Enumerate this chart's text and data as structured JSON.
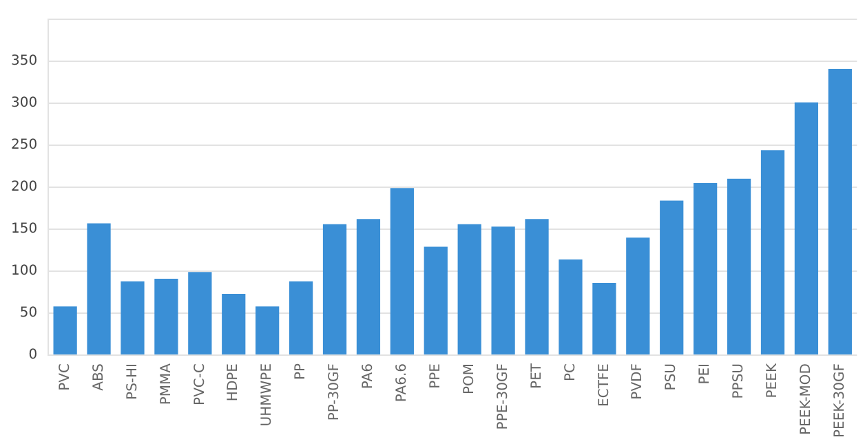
{
  "chart_data": {
    "type": "bar",
    "categories": [
      "PVC",
      "ABS",
      "PS-HI",
      "PMMA",
      "PVC-C",
      "HDPE",
      "UHMWPE",
      "PP",
      "PP-30GF",
      "PA6",
      "PA6.6",
      "PPE",
      "POM",
      "PPE-30GF",
      "PET",
      "PC",
      "ECTFE",
      "PVDF",
      "PSU",
      "PEI",
      "PPSU",
      "PEEK",
      "PEEK-MOD",
      "PEEK-30GF"
    ],
    "values": [
      58,
      157,
      88,
      91,
      99,
      73,
      58,
      88,
      156,
      162,
      199,
      129,
      156,
      153,
      162,
      114,
      86,
      140,
      184,
      205,
      210,
      244,
      301,
      341
    ],
    "color": "#3a8fd6",
    "ylim": [
      0,
      400
    ],
    "yticks": [
      0,
      50,
      100,
      150,
      200,
      250,
      300,
      350,
      {
        "value": 400,
        "label": null
      }
    ],
    "grid": "y"
  }
}
